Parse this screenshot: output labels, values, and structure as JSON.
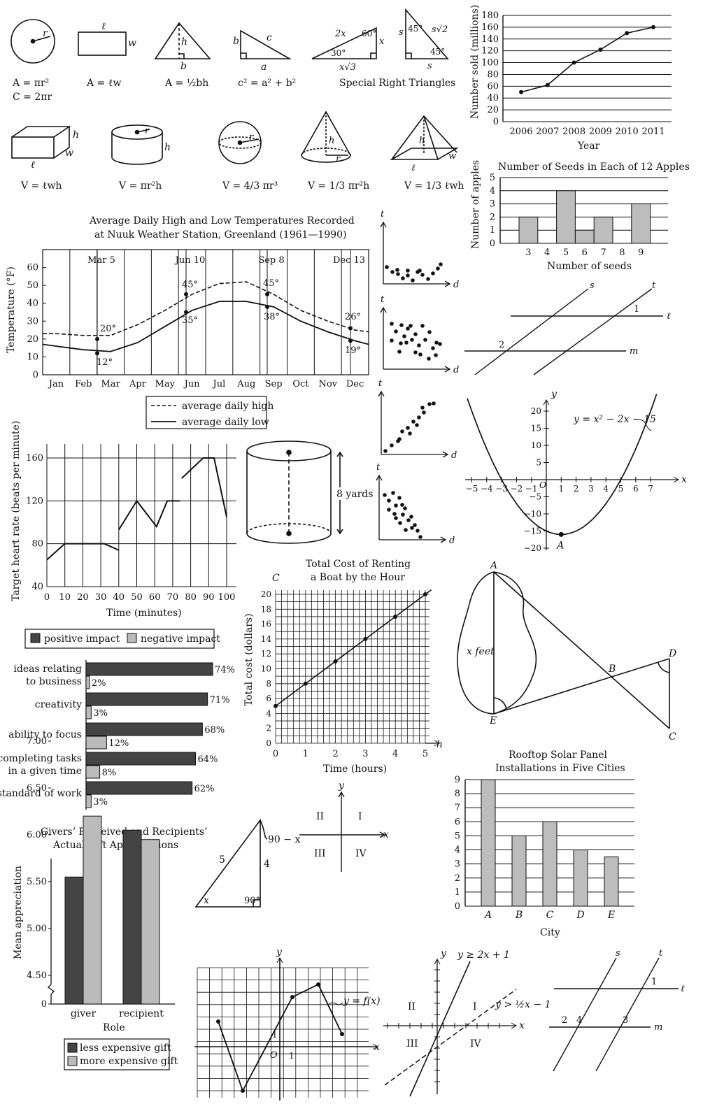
{
  "formulas": [
    {
      "id": "circle",
      "f1": "A = πr²",
      "f2": "C = 2πr",
      "labels": [
        "r"
      ]
    },
    {
      "id": "rect",
      "f1": "A = ℓw",
      "labels": [
        "ℓ",
        "w"
      ]
    },
    {
      "id": "tri",
      "f1": "A = ½bh",
      "labels": [
        "h",
        "b"
      ]
    },
    {
      "id": "pyth",
      "f1": "c² = a² + b²",
      "labels": [
        "b",
        "c",
        "a"
      ]
    },
    {
      "id": "special",
      "f1": "Special Right Triangles",
      "labels": [
        "2x",
        "60°",
        "x",
        "30°",
        "x√3",
        "s",
        "45°",
        "s√2",
        "45°",
        "s"
      ]
    },
    {
      "id": "box",
      "f1": "V = ℓwh",
      "labels": [
        "h",
        "w",
        "ℓ"
      ]
    },
    {
      "id": "cyl",
      "f1": "V = πr²h",
      "labels": [
        "r",
        "h"
      ]
    },
    {
      "id": "sphere",
      "f1": "V = 4/3 πr³",
      "labels": [
        "r"
      ]
    },
    {
      "id": "cone",
      "f1": "V = 1/3 πr²h",
      "labels": [
        "h",
        "r"
      ]
    },
    {
      "id": "pyramid",
      "f1": "V = 1/3 ℓwh",
      "labels": [
        "h",
        "w",
        "ℓ"
      ]
    }
  ],
  "chart_data": [
    {
      "id": "sold",
      "type": "line",
      "xlabel": "Year",
      "ylabel": "Number sold (millions)",
      "x": [
        "2006",
        "2007",
        "2008",
        "2009",
        "2010",
        "2011"
      ],
      "values": [
        50,
        62,
        100,
        122,
        150,
        160
      ],
      "ylim": [
        0,
        180
      ],
      "yticks": [
        0,
        20,
        40,
        60,
        80,
        100,
        120,
        140,
        160,
        180
      ]
    },
    {
      "id": "seeds",
      "type": "bar",
      "title": "Number of Seeds in Each of 12 Apples",
      "xlabel": "Number of seeds",
      "ylabel": "Number of apples",
      "categories": [
        "3",
        "4",
        "5",
        "6",
        "7",
        "8",
        "9"
      ],
      "values": [
        2,
        0,
        4,
        1,
        2,
        0,
        3
      ],
      "ylim": [
        0,
        5
      ]
    },
    {
      "id": "nuuk",
      "type": "line",
      "title": "Average Daily High and Low Temperatures Recorded",
      "subtitle": "at Nuuk Weather Station, Greenland (1961—1990)",
      "ylabel": "Temperature (°F)",
      "ylim": [
        0,
        60
      ],
      "yticks": [
        0,
        10,
        20,
        30,
        40,
        50,
        60
      ],
      "x": [
        "Jan",
        "Feb",
        "Mar",
        "Apr",
        "May",
        "Jun",
        "Jul",
        "Aug",
        "Sep",
        "Oct",
        "Nov",
        "Dec"
      ],
      "series": [
        {
          "name": "average daily high",
          "values": [
            23,
            22,
            22,
            28,
            36,
            45,
            51,
            52,
            45,
            36,
            30,
            25
          ]
        },
        {
          "name": "average daily low",
          "values": [
            16,
            14,
            13,
            18,
            27,
            36,
            41,
            41,
            38,
            30,
            24,
            19
          ]
        }
      ],
      "markers": [
        "Mar 5",
        "Jun 10",
        "Sep 8",
        "Dec 13"
      ],
      "annotations": [
        "20°",
        "12°",
        "45°",
        "35°",
        "45°",
        "38°",
        "26°",
        "19°"
      ]
    },
    {
      "id": "heart",
      "type": "line",
      "xlabel": "Time (minutes)",
      "ylabel": "Target heart rate (beats per minute)",
      "ylim": [
        40,
        160
      ],
      "yticks": [
        40,
        80,
        120,
        160
      ],
      "xticks": [
        "0",
        "10",
        "20",
        "30",
        "40",
        "50",
        "60",
        "70",
        "80",
        "90",
        "100"
      ]
    },
    {
      "id": "boat",
      "type": "line",
      "title": "Total Cost of Renting",
      "subtitle": "a Boat by the Hour",
      "xlabel": "Time (hours)",
      "ylabel": "Total cost (dollars)",
      "axis_x": "h",
      "axis_y": "C",
      "x": [
        0,
        1,
        2,
        3,
        4,
        5
      ],
      "values": [
        5,
        8,
        11,
        14,
        17,
        20
      ],
      "ylim": [
        0,
        20
      ],
      "yticks": [
        "0",
        "2",
        "4",
        "6",
        "8",
        "10",
        "12",
        "14",
        "16",
        "18",
        "20"
      ]
    },
    {
      "id": "impact",
      "type": "bar",
      "legend": [
        "positive impact",
        "negative impact"
      ],
      "categories": [
        "ideas relating to business",
        "creativity",
        "ability to focus",
        "completing tasks in a given time",
        "standard of work"
      ],
      "series": [
        {
          "name": "positive impact",
          "values": [
            74,
            71,
            68,
            64,
            62
          ]
        },
        {
          "name": "negative impact",
          "values": [
            2,
            3,
            12,
            8,
            3
          ]
        }
      ],
      "labels_pos": [
        "74%",
        "71%",
        "68%",
        "64%",
        "62%"
      ],
      "labels_neg": [
        "2%",
        "3%",
        "12%",
        "8%",
        "3%"
      ]
    },
    {
      "id": "solar",
      "type": "bar",
      "title": "Rooftop Solar Panel",
      "subtitle": "Installations in Five Cities",
      "xlabel": "City",
      "categories": [
        "A",
        "B",
        "C",
        "D",
        "E"
      ],
      "values": [
        9,
        5,
        6,
        4,
        3.5
      ],
      "ylim": [
        0,
        9
      ]
    },
    {
      "id": "gift",
      "type": "bar",
      "title": "Givers’ Perceived and Recipients’",
      "subtitle": "Actual Gift Appreciations",
      "xlabel": "Role",
      "ylabel": "Mean appreciation",
      "categories": [
        "giver",
        "recipient"
      ],
      "series": [
        {
          "name": "less expensive gift",
          "values": [
            5.55,
            6.05
          ]
        },
        {
          "name": "more expensive gift",
          "values": [
            6.2,
            5.95
          ]
        }
      ],
      "yticks": [
        "4.50",
        "5.00",
        "5.50",
        "6.00",
        "6.50",
        "7.00"
      ]
    }
  ],
  "text": {
    "parabola_eq": "y = x² − 2x − 15",
    "parabola_point": "A",
    "cyl_height": "8 yards",
    "quadrants": [
      "II",
      "I",
      "III",
      "IV"
    ],
    "ineq1": "y ≥ 2x + 1",
    "ineq2": "y > ½x − 1",
    "fx_label": "y = f(x)",
    "tri_labels": [
      "90 − x",
      "5",
      "4",
      "x",
      "90°"
    ],
    "lake_labels": [
      "A",
      "B",
      "C",
      "D",
      "E",
      "x feet"
    ],
    "lines_labels": [
      "s",
      "t",
      "ℓ",
      "m",
      "1",
      "2"
    ],
    "lines2_labels": [
      "s",
      "t",
      "ℓ",
      "m",
      "1",
      "2",
      "4",
      "3"
    ],
    "axis": [
      "t",
      "d",
      "x",
      "y",
      "O",
      "1"
    ]
  }
}
